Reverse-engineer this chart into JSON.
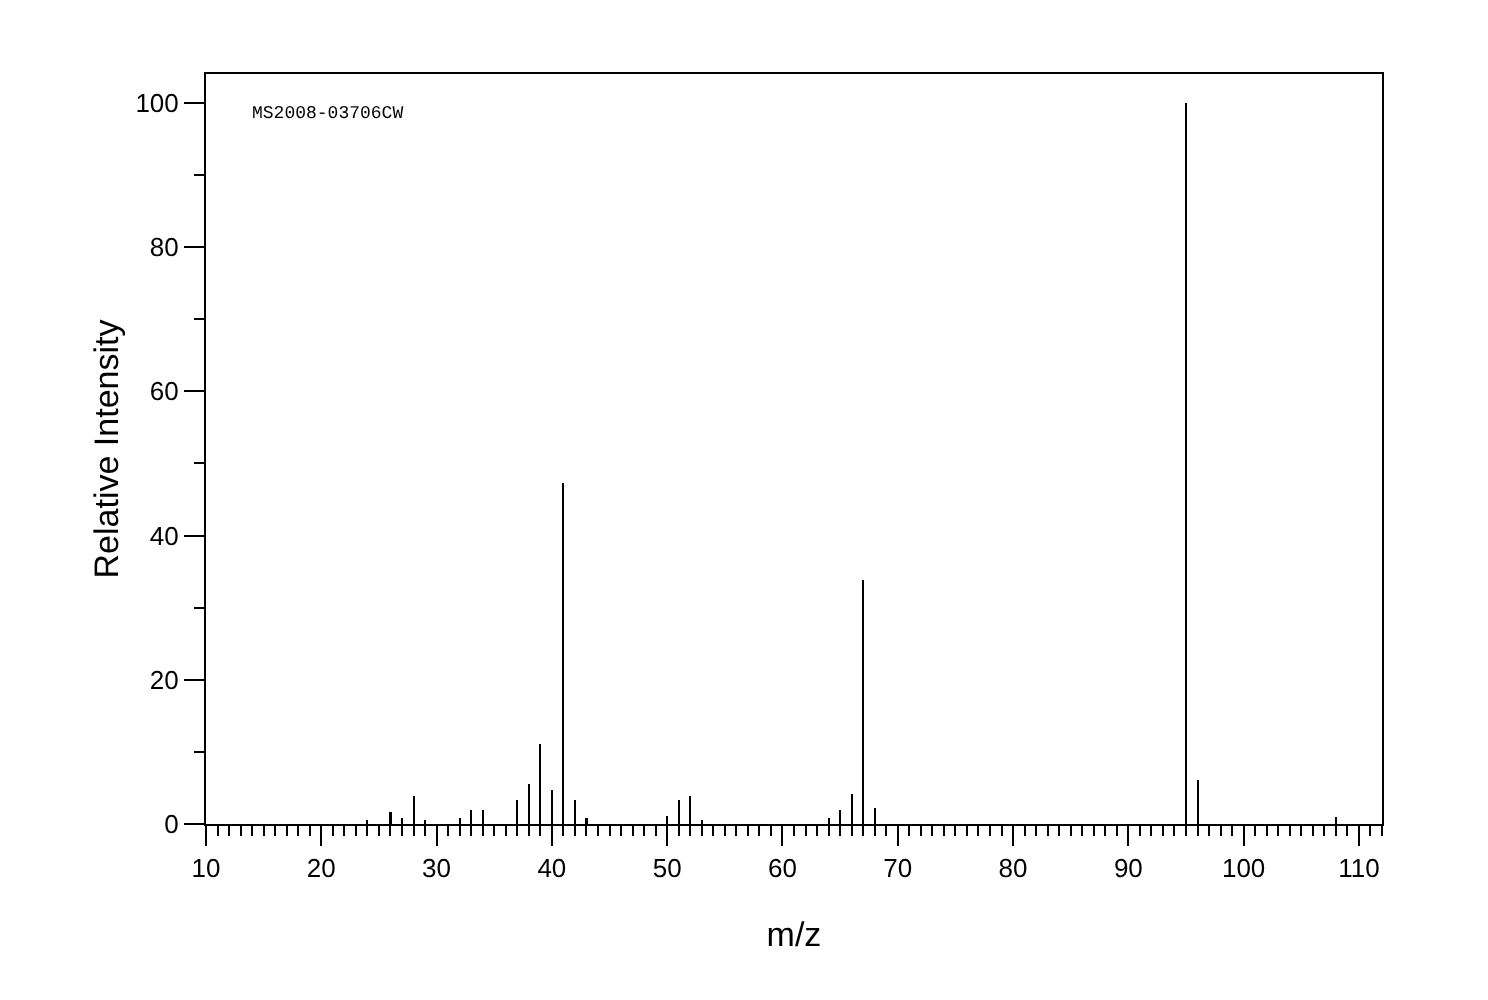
{
  "chart_data": {
    "type": "bar",
    "xlabel": "m/z",
    "ylabel": "Relative Intensity",
    "annotations": [
      "MS2008-03706CW"
    ],
    "x": [
      24,
      26,
      27,
      28,
      29,
      32,
      33,
      34,
      37,
      38,
      39,
      40,
      41,
      42,
      43,
      50,
      51,
      52,
      53,
      64,
      65,
      66,
      67,
      68,
      95,
      96,
      108
    ],
    "values": [
      0.5,
      1.7,
      0.8,
      3.9,
      0.5,
      0.8,
      2.0,
      2.0,
      3.3,
      5.6,
      11.1,
      4.7,
      47.3,
      3.3,
      0.8,
      1.1,
      3.3,
      3.9,
      0.6,
      0.8,
      1.9,
      4.2,
      33.8,
      2.2,
      100,
      6.1,
      1.0
    ],
    "color": "#000000",
    "xlim": [
      10,
      112
    ],
    "ylim": [
      0,
      104
    ],
    "xticks": [
      10,
      20,
      30,
      40,
      50,
      60,
      70,
      80,
      90,
      100,
      110
    ],
    "yticks": [
      0,
      20,
      40,
      60,
      80,
      100
    ],
    "grid": false
  }
}
